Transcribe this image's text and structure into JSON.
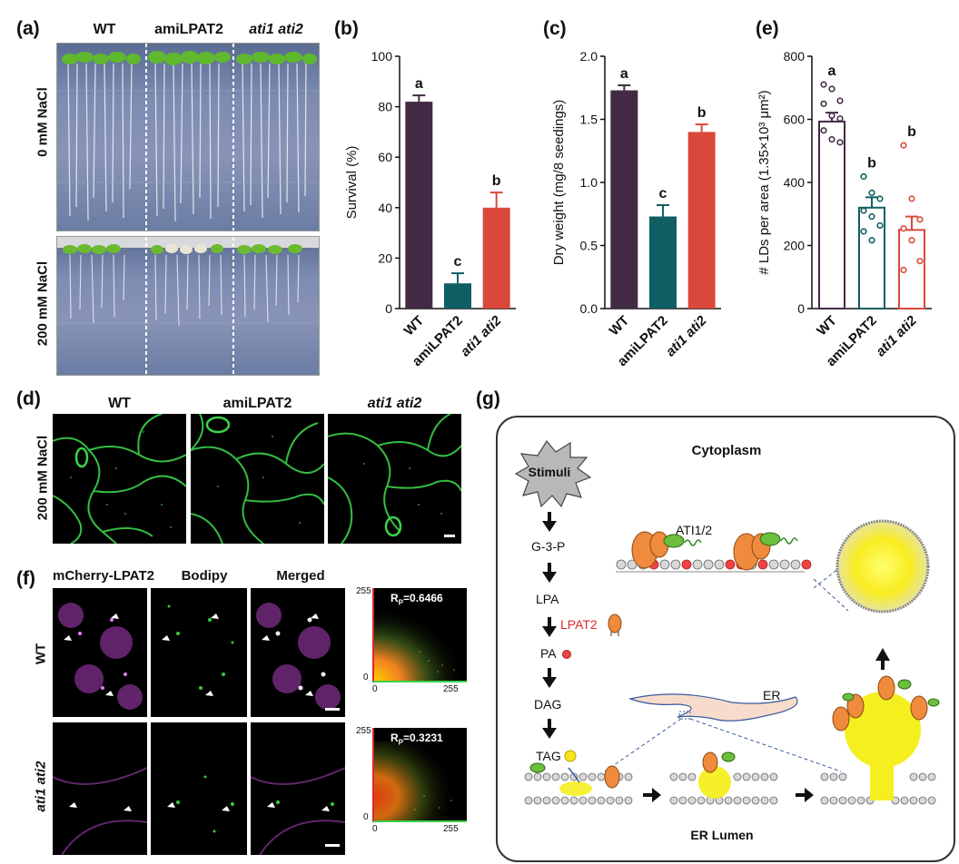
{
  "panels": {
    "a": {
      "label": "(a)",
      "col_headers": [
        "WT",
        "amiLPAT2",
        "ati1 ati2"
      ],
      "row_labels": [
        "0 mM NaCl",
        "200 mM NaCl"
      ]
    },
    "b": {
      "label": "(b)"
    },
    "c": {
      "label": "(c)"
    },
    "d": {
      "label": "(d)",
      "col_headers": [
        "WT",
        "amiLPAT2",
        "ati1 ati2"
      ],
      "row_label": "200 mM NaCl"
    },
    "e": {
      "label": "(e)"
    },
    "f": {
      "label": "(f)",
      "col_headers": [
        "mCherry-LPAT2",
        "Bodipy",
        "Merged"
      ],
      "row_labels": [
        "WT",
        "ati1 ati2"
      ],
      "scatter_wt": {
        "rp": "R",
        "rp_sub": "P",
        "rp_value": "=0.6466",
        "ymax": "255",
        "zero": "0",
        "xmax": "255"
      },
      "scatter_mut": {
        "rp": "R",
        "rp_sub": "P",
        "rp_value": "=0.3231",
        "ymax": "255",
        "zero": "0",
        "xmax": "255"
      }
    },
    "g": {
      "label": "(g)",
      "cytoplasm": "Cytoplasm",
      "stimuli": "Stimuli",
      "steps": [
        "G-3-P",
        "LPA",
        "PA",
        "DAG",
        "TAG"
      ],
      "lpat2": "LPAT2",
      "ati": "ATI1/2",
      "er": "ER",
      "er_lumen": "ER Lumen"
    }
  },
  "colors": {
    "wt": "#432a45",
    "amilpat2": "#0f5e63",
    "ati": "#d9483b",
    "lpat2_red": "#e0252a"
  },
  "chart_data": [
    {
      "type": "bar",
      "panel": "b",
      "categories": [
        "WT",
        "amiLPAT2",
        "ati1 ati2"
      ],
      "values": [
        82,
        10,
        40
      ],
      "errors": [
        2.5,
        4,
        6
      ],
      "letters": [
        "a",
        "c",
        "b"
      ],
      "ylabel": "Survival (%)",
      "ylim": [
        0,
        100
      ],
      "yticks": [
        "0",
        "20",
        "40",
        "60",
        "80",
        "100"
      ]
    },
    {
      "type": "bar",
      "panel": "c",
      "categories": [
        "WT",
        "amiLPAT2",
        "ati1 ati2"
      ],
      "values": [
        1.73,
        0.73,
        1.4
      ],
      "errors": [
        0.04,
        0.09,
        0.06
      ],
      "letters": [
        "a",
        "c",
        "b"
      ],
      "ylabel": "Dry weight (mg/8 seedings)",
      "ylim": [
        0,
        2.0
      ],
      "yticks": [
        "0.0",
        "0.5",
        "1.0",
        "1.5",
        "2.0"
      ]
    },
    {
      "type": "bar",
      "panel": "e",
      "categories": [
        "WT",
        "amiLPAT2",
        "ati1 ati2"
      ],
      "values": [
        630,
        340,
        265
      ],
      "errors": [
        30,
        35,
        45
      ],
      "letters": [
        "a",
        "b",
        "b"
      ],
      "points": [
        [
          755,
          740,
          700,
          690,
          650,
          640,
          600,
          570,
          560
        ],
        [
          445,
          390,
          370,
          330,
          310,
          280,
          260,
          230
        ],
        [
          550,
          370,
          300,
          270,
          230,
          160,
          130
        ]
      ],
      "ylabel": "# LDs per area (1.35×10³ μm²)",
      "ylim": [
        0,
        850
      ],
      "yticks": [
        "0",
        "200",
        "400",
        "600",
        "800"
      ]
    }
  ]
}
